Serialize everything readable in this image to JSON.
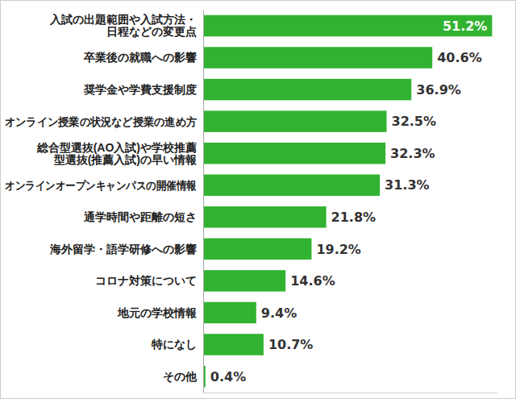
{
  "chart_data": {
    "type": "bar",
    "orientation": "horizontal",
    "categories": [
      "入試の出題範囲や入試方法・\n日程などの変更点",
      "卒業後の就職への影響",
      "奨学金や学費支援制度",
      "オンライン授業の状況など授業の進め方",
      "総合型選抜(AO入試)や学校推薦\n型選抜(推薦入試)の早い情報",
      "オンラインオープンキャンパスの開催情報",
      "通学時間や距離の短さ",
      "海外留学・語学研修への影響",
      "コロナ対策について",
      "地元の学校情報",
      "特になし",
      "その他"
    ],
    "values": [
      51.2,
      40.6,
      36.9,
      32.5,
      32.3,
      31.3,
      21.8,
      19.2,
      14.6,
      9.4,
      10.7,
      0.4
    ],
    "value_labels": [
      "51.2%",
      "40.6%",
      "36.9%",
      "32.5%",
      "32.3%",
      "31.3%",
      "21.8%",
      "19.2%",
      "14.6%",
      "9.4%",
      "10.7%",
      "0.4%"
    ],
    "color": "#31b331",
    "xlim": [
      0,
      52
    ],
    "data_labels": true,
    "tick_labels": "y",
    "grid": false
  }
}
